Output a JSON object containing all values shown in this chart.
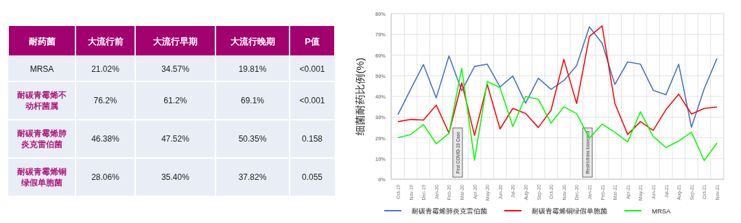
{
  "chart_data": [
    {
      "type": "other",
      "ylabel": "耐药菌",
      "categories": [
        "大流行前",
        "大流行早期",
        "大流行晚期",
        "P值"
      ],
      "y_categories": [
        "MRSA",
        "耐碳青霉烯不动杆菌属",
        "耐碳青霉烯肺炎克雷伯菌",
        "耐碳青霉烯铜绿假单胞菌"
      ],
      "cell_labels": [
        [
          "21.02%",
          "34.57%",
          "19.81%",
          "<0.001"
        ],
        [
          "76.2%",
          "61.2%",
          "69.1%",
          "<0.001"
        ],
        [
          "46.38%",
          "47.52%",
          "50.35%",
          "0.158"
        ],
        [
          "28.06%",
          "35.40%",
          "37.82%",
          "0.055"
        ]
      ]
    },
    {
      "type": "line",
      "ylabel": "细菌耐药比例(%)",
      "categories": [
        "Oct-19",
        "Nov-19",
        "Dec-19",
        "Jan-20",
        "Feb-20",
        "Mar-20",
        "Apr-20",
        "May-20",
        "Jun-20",
        "Jul-20",
        "Aug-20",
        "Sep-20",
        "Oct-20",
        "Nov-20",
        "Dec-20",
        "Jan-21",
        "Feb-21",
        "Mar-21",
        "Apr-21",
        "May-21",
        "Jun-21",
        "Jul-21",
        "Aug-21",
        "Sep-21",
        "Oct-21",
        "Nov-21"
      ],
      "series": [
        {
          "name": "耐碳青霉烯肺炎克雷伯菌",
          "color": "#4472c4",
          "values": [
            31.2,
            43.5,
            55.4,
            39.3,
            59.6,
            42.7,
            54.5,
            55.6,
            44.6,
            49.9,
            36.7,
            48.8,
            43.4,
            47.7,
            54.9,
            73.6,
            65.7,
            45.8,
            56.7,
            55.6,
            43.0,
            40.8,
            55.6,
            25.1,
            43.7,
            58.4
          ]
        },
        {
          "name": "耐碳青霉烯铜绿假单胞菌",
          "color": "#ff0000",
          "values": [
            27.8,
            28.9,
            28.6,
            35.8,
            22.3,
            46.6,
            21.2,
            45.8,
            24.3,
            34.2,
            31.8,
            25.0,
            33.4,
            57.9,
            36.6,
            69.0,
            74.1,
            36.6,
            21.6,
            27.8,
            23.6,
            33.6,
            41.1,
            31.5,
            34.2,
            34.9
          ]
        },
        {
          "name": "MRSA",
          "color": "#00ff00",
          "values": [
            20.1,
            21.6,
            26.4,
            17.1,
            22.2,
            53.6,
            9.2,
            47.3,
            44.2,
            25.5,
            40.0,
            38.6,
            27.1,
            35.0,
            31.7,
            19.8,
            26.7,
            22.7,
            18.0,
            32.6,
            20.7,
            15.3,
            18.5,
            22.7,
            9.0,
            17.5
          ]
        }
      ],
      "ylim": [
        0,
        80
      ],
      "yticks": [
        {
          "value": 0,
          "label": "0%"
        },
        {
          "value": 10,
          "label": "10%"
        },
        {
          "value": 20,
          "label": "20%"
        },
        {
          "value": 30,
          "label": "30%"
        },
        {
          "value": 40,
          "label": "40%"
        },
        {
          "value": 50,
          "label": "50%"
        },
        {
          "value": 60,
          "label": "60%"
        },
        {
          "value": 70,
          "label": "70%"
        },
        {
          "value": 80,
          "label": "80%"
        }
      ],
      "grid": true,
      "legend": "bottom",
      "marker": "none",
      "annotations": [
        "First COVID-19 Case",
        "Restrictions loosened"
      ]
    }
  ]
}
